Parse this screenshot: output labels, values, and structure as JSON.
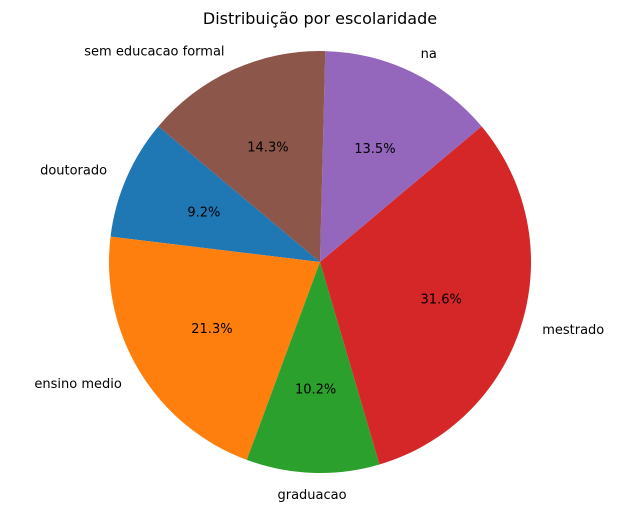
{
  "chart_data": {
    "type": "pie",
    "title": "Distribuição por escolaridade",
    "slices": [
      {
        "label": "doutorado",
        "value": 9.2,
        "pct_label": "9.2%",
        "color": "#1f77b4"
      },
      {
        "label": "ensino medio",
        "value": 21.3,
        "pct_label": "21.3%",
        "color": "#ff7f0e"
      },
      {
        "label": "graduacao",
        "value": 10.2,
        "pct_label": "10.2%",
        "color": "#2ca02c"
      },
      {
        "label": "mestrado",
        "value": 31.6,
        "pct_label": "31.6%",
        "color": "#d62728"
      },
      {
        "label": "na",
        "value": 13.5,
        "pct_label": "13.5%",
        "color": "#9467bd"
      },
      {
        "label": "sem educacao formal",
        "value": 14.3,
        "pct_label": "14.3%",
        "color": "#8c564b"
      }
    ],
    "start_angle_deg": 140,
    "direction": "counterclockwise",
    "legend": "none"
  }
}
